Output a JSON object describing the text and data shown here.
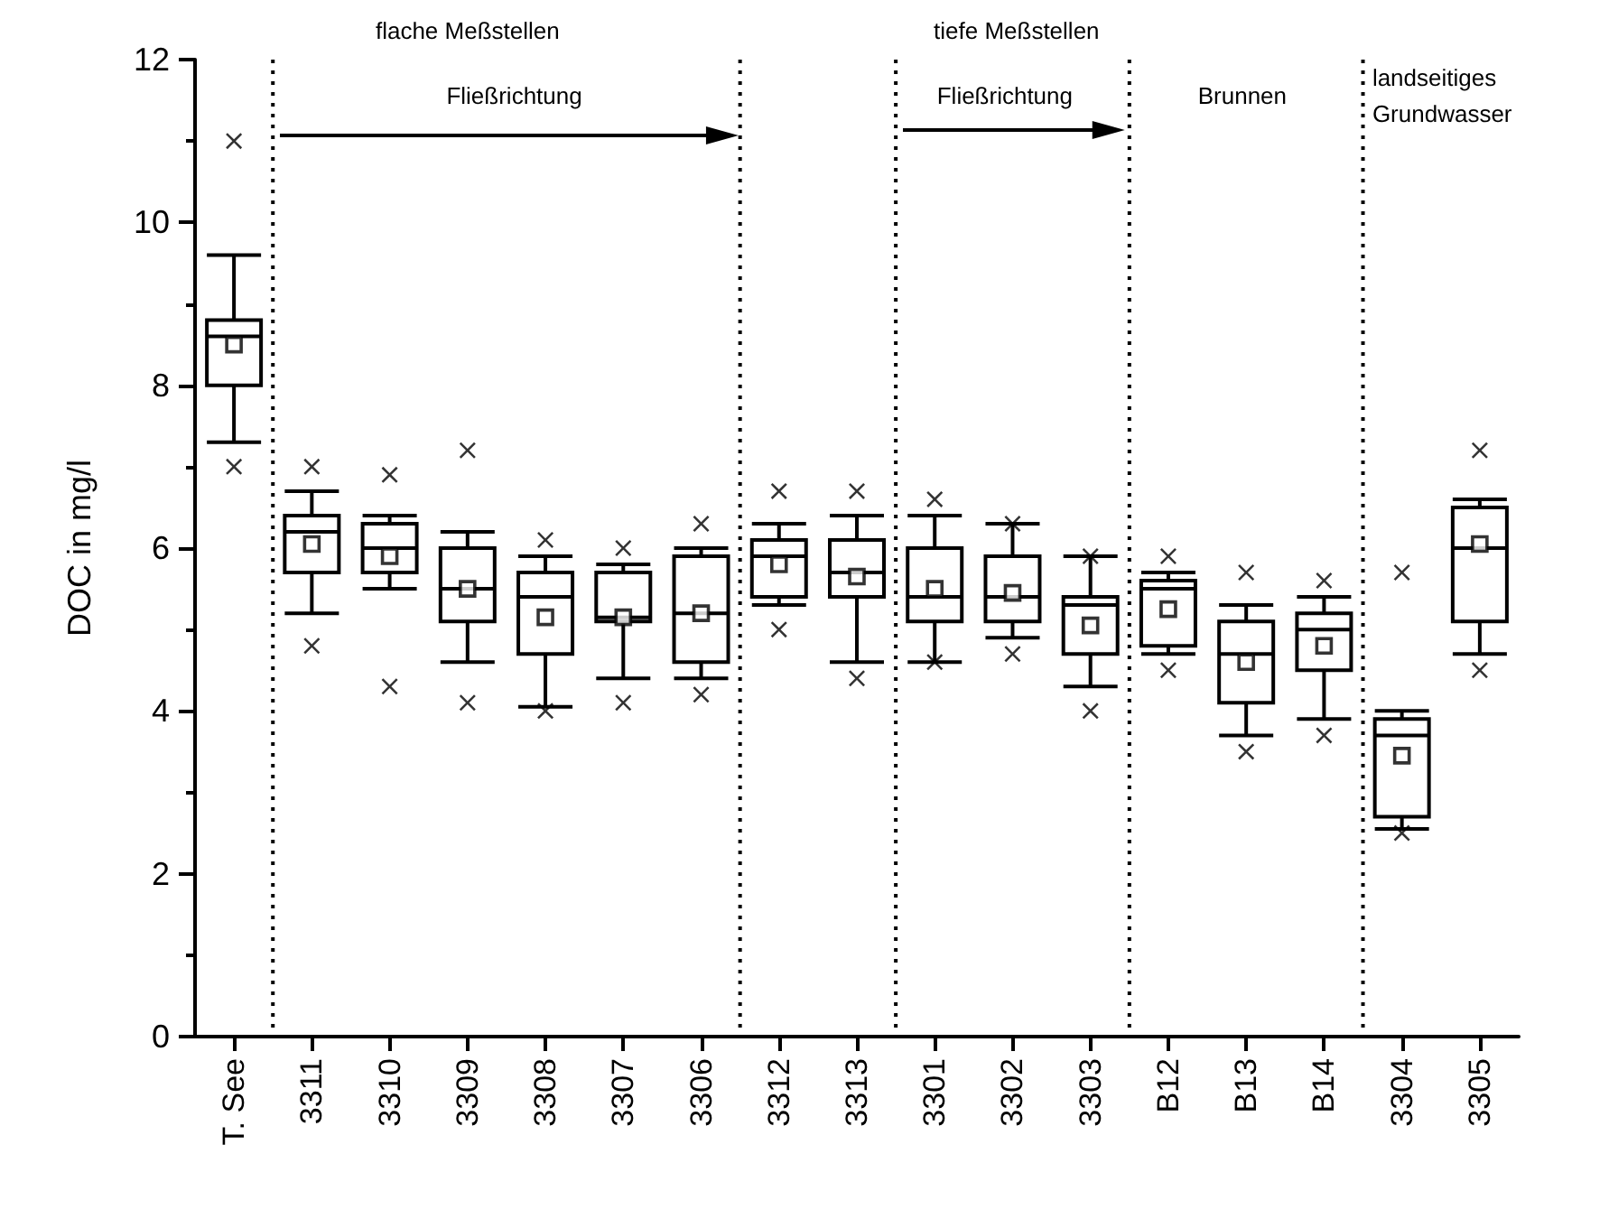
{
  "chart_data": {
    "type": "box",
    "ylabel": "DOC in mg/l",
    "color": "#000000",
    "categories": [
      "T. See",
      "3311",
      "3310",
      "3309",
      "3308",
      "3307",
      "3306",
      "3312",
      "3313",
      "3301",
      "3302",
      "3303",
      "B12",
      "B13",
      "B14",
      "3304",
      "3305"
    ],
    "boxes": [
      {
        "low": 7.3,
        "q1": 8.0,
        "median": 8.6,
        "q3": 8.8,
        "high": 9.6,
        "mean": 8.5,
        "outliers": [
          7.0,
          11.0
        ]
      },
      {
        "low": 5.2,
        "q1": 5.7,
        "median": 6.2,
        "q3": 6.4,
        "high": 6.7,
        "mean": 6.05,
        "outliers": [
          4.8,
          7.0
        ]
      },
      {
        "low": 5.5,
        "q1": 5.7,
        "median": 6.0,
        "q3": 6.3,
        "high": 6.4,
        "mean": 5.9,
        "outliers": [
          4.3,
          6.9
        ]
      },
      {
        "low": 4.6,
        "q1": 5.1,
        "median": 5.5,
        "q3": 6.0,
        "high": 6.2,
        "mean": 5.5,
        "outliers": [
          4.1,
          7.2
        ]
      },
      {
        "low": 4.05,
        "q1": 4.7,
        "median": 5.4,
        "q3": 5.7,
        "high": 5.9,
        "mean": 5.15,
        "outliers": [
          4.0,
          6.1
        ]
      },
      {
        "low": 4.4,
        "q1": 5.1,
        "median": 5.15,
        "q3": 5.7,
        "high": 5.8,
        "mean": 5.15,
        "outliers": [
          4.1,
          6.0
        ]
      },
      {
        "low": 4.4,
        "q1": 4.6,
        "median": 5.2,
        "q3": 5.9,
        "high": 6.0,
        "mean": 5.2,
        "outliers": [
          4.2,
          6.3
        ]
      },
      {
        "low": 5.3,
        "q1": 5.4,
        "median": 5.9,
        "q3": 6.1,
        "high": 6.3,
        "mean": 5.8,
        "outliers": [
          5.0,
          6.7
        ]
      },
      {
        "low": 4.6,
        "q1": 5.4,
        "median": 5.7,
        "q3": 6.1,
        "high": 6.4,
        "mean": 5.65,
        "outliers": [
          4.4,
          6.7
        ]
      },
      {
        "low": 4.6,
        "q1": 5.1,
        "median": 5.4,
        "q3": 6.0,
        "high": 6.4,
        "mean": 5.5,
        "outliers": [
          4.6,
          6.6
        ]
      },
      {
        "low": 4.9,
        "q1": 5.1,
        "median": 5.4,
        "q3": 5.9,
        "high": 6.3,
        "mean": 5.45,
        "outliers": [
          4.7,
          6.3
        ]
      },
      {
        "low": 4.3,
        "q1": 4.7,
        "median": 5.3,
        "q3": 5.4,
        "high": 5.9,
        "mean": 5.05,
        "outliers": [
          4.0,
          5.9
        ]
      },
      {
        "low": 4.7,
        "q1": 4.8,
        "median": 5.5,
        "q3": 5.6,
        "high": 5.7,
        "mean": 5.25,
        "outliers": [
          4.5,
          5.9
        ]
      },
      {
        "low": 3.7,
        "q1": 4.1,
        "median": 4.7,
        "q3": 5.1,
        "high": 5.3,
        "mean": 4.6,
        "outliers": [
          3.5,
          5.7
        ]
      },
      {
        "low": 3.9,
        "q1": 4.5,
        "median": 5.0,
        "q3": 5.2,
        "high": 5.4,
        "mean": 4.8,
        "outliers": [
          3.7,
          5.6
        ]
      },
      {
        "low": 2.55,
        "q1": 2.7,
        "median": 3.7,
        "q3": 3.9,
        "high": 4.0,
        "mean": 3.45,
        "outliers": [
          2.5,
          5.7
        ]
      },
      {
        "low": 4.7,
        "q1": 5.1,
        "median": 6.0,
        "q3": 6.5,
        "high": 6.6,
        "mean": 6.05,
        "outliers": [
          4.5,
          7.2
        ]
      }
    ],
    "ylim": [
      0,
      12
    ],
    "yticks": [
      0,
      2,
      4,
      6,
      8,
      10,
      12
    ],
    "annotations": [
      "flache Meßstellen",
      "Fließrichtung",
      "tiefe Meßstellen",
      "Fließrichtung",
      "Brunnen",
      "landseitiges\nGrundwasser"
    ]
  }
}
